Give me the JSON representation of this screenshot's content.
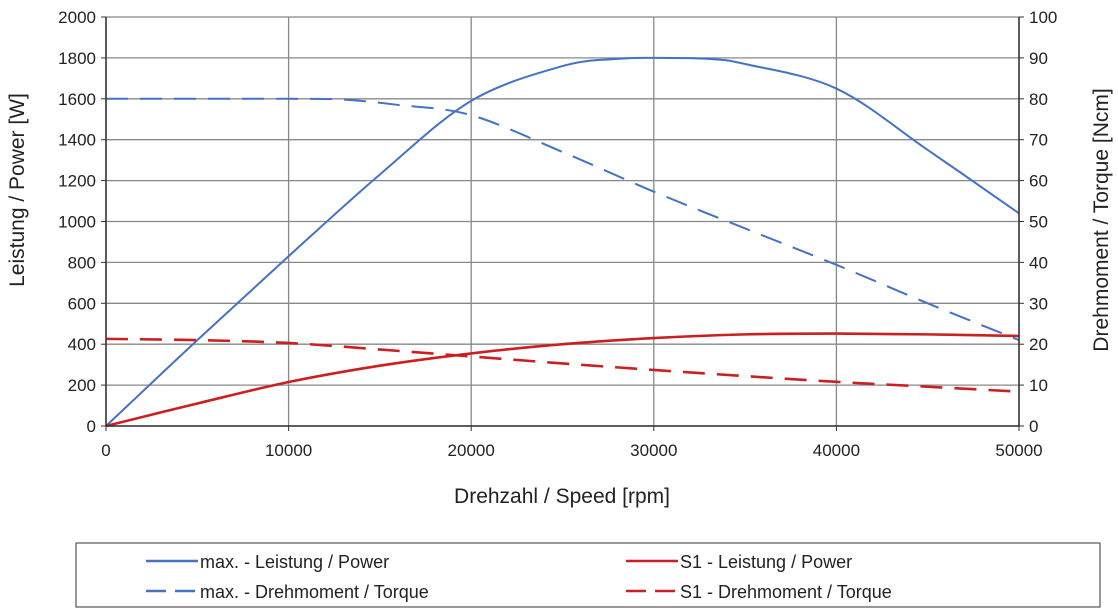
{
  "chart_data": {
    "type": "line",
    "xlabel": "Drehzahl / Speed [rpm]",
    "ylabel": "Leistung / Power [W]",
    "y2label": "Drehmoment / Torque [Ncm]",
    "xlim": [
      0,
      50000
    ],
    "ylim": [
      0,
      2000
    ],
    "y2lim": [
      0,
      100
    ],
    "xticks": [
      0,
      10000,
      20000,
      30000,
      40000,
      50000
    ],
    "yticks": [
      0,
      200,
      400,
      600,
      800,
      1000,
      1200,
      1400,
      1600,
      1800,
      2000
    ],
    "y2ticks": [
      0,
      10,
      20,
      30,
      40,
      50,
      60,
      70,
      80,
      90,
      100
    ],
    "grid": true,
    "legend_position": "bottom",
    "series": [
      {
        "name": "max. - Leistung / Power",
        "axis": "left",
        "color": "#4472c4",
        "dash": false,
        "x": [
          0,
          5000,
          10000,
          15000,
          20000,
          25000,
          28000,
          30000,
          33000,
          35000,
          40000,
          45000,
          50000
        ],
        "y": [
          0,
          420,
          830,
          1230,
          1590,
          1760,
          1795,
          1800,
          1795,
          1770,
          1650,
          1350,
          1040
        ]
      },
      {
        "name": "max. - Drehmoment / Torque",
        "axis": "right",
        "color": "#4472c4",
        "dash": true,
        "x": [
          0,
          10000,
          13000,
          16000,
          20000,
          25000,
          30000,
          35000,
          40000,
          45000,
          50000
        ],
        "y": [
          80,
          80,
          79.8,
          78.5,
          76,
          67,
          57.3,
          48.3,
          39.4,
          30,
          21
        ]
      },
      {
        "name": "S1 - Leistung / Power",
        "axis": "left",
        "color": "#cc1f1f",
        "dash": false,
        "x": [
          0,
          5000,
          10000,
          15000,
          20000,
          25000,
          30000,
          35000,
          40000,
          45000,
          50000
        ],
        "y": [
          0,
          110,
          215,
          295,
          355,
          400,
          430,
          448,
          452,
          448,
          440
        ]
      },
      {
        "name": "S1 - Drehmoment / Torque",
        "axis": "right",
        "color": "#cc1f1f",
        "dash": true,
        "x": [
          0,
          5000,
          10000,
          15000,
          20000,
          25000,
          30000,
          35000,
          40000,
          45000,
          50000
        ],
        "y": [
          21.3,
          21,
          20.3,
          18.7,
          17,
          15.3,
          13.7,
          12.2,
          10.8,
          9.6,
          8.4
        ]
      }
    ]
  }
}
